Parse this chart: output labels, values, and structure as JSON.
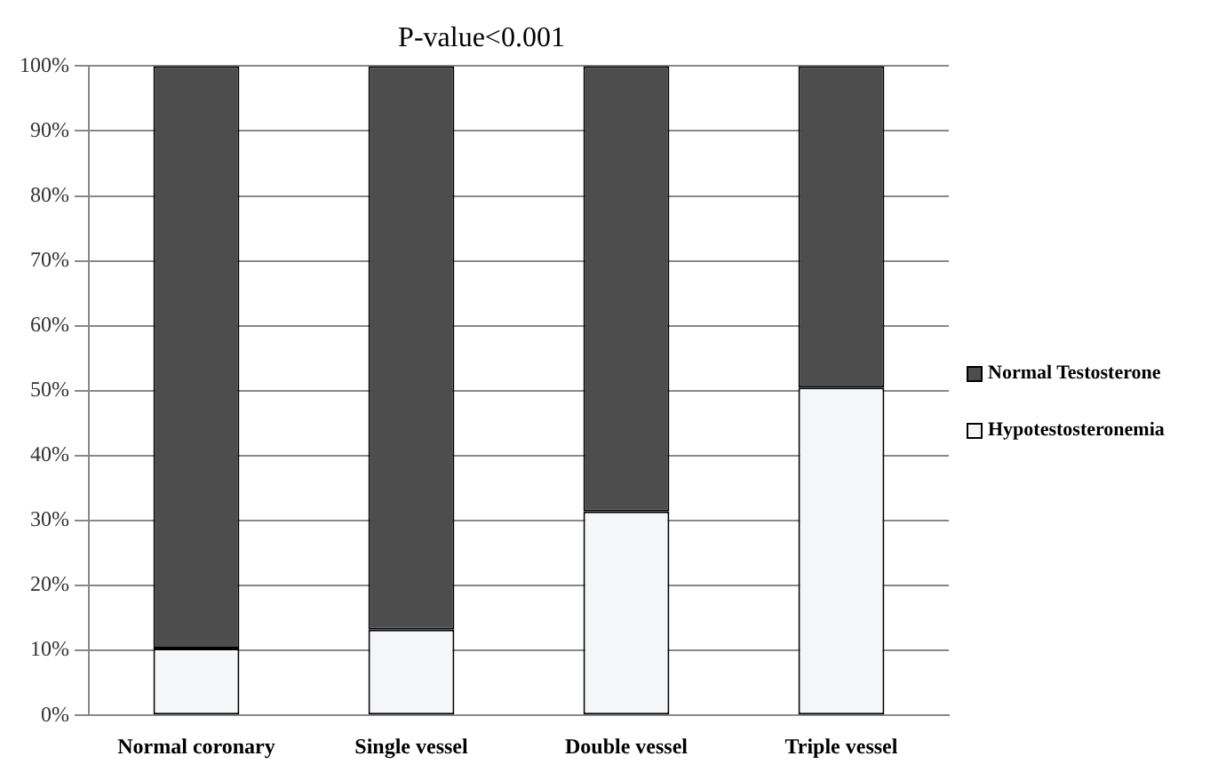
{
  "chart_data": {
    "type": "bar",
    "title": "P-value<0.001",
    "categories": [
      "Normal coronary",
      "Single vessel",
      "Double vessel",
      "Triple vessel"
    ],
    "stacked": true,
    "series": [
      {
        "name": "Hypotestosteronemia",
        "color": "#f5f6f8",
        "values": [
          10.3,
          13.2,
          31.4,
          50.5
        ]
      },
      {
        "name": "Normal Testosterone",
        "color": "#4d4d4d",
        "values": [
          89.7,
          86.8,
          68.6,
          49.5
        ]
      }
    ],
    "ylim": [
      0,
      100
    ],
    "yticks": [
      {
        "value": 0,
        "label": "0%"
      },
      {
        "value": 10,
        "label": "10%"
      },
      {
        "value": 20,
        "label": "20%"
      },
      {
        "value": 30,
        "label": "30%"
      },
      {
        "value": 40,
        "label": "40%"
      },
      {
        "value": 50,
        "label": "50%"
      },
      {
        "value": 60,
        "label": "60%"
      },
      {
        "value": 70,
        "label": "70%"
      },
      {
        "value": 80,
        "label": "80%"
      },
      {
        "value": 90,
        "label": "90%"
      },
      {
        "value": 100,
        "label": "100%"
      }
    ],
    "grid": "y",
    "legend": "right"
  }
}
